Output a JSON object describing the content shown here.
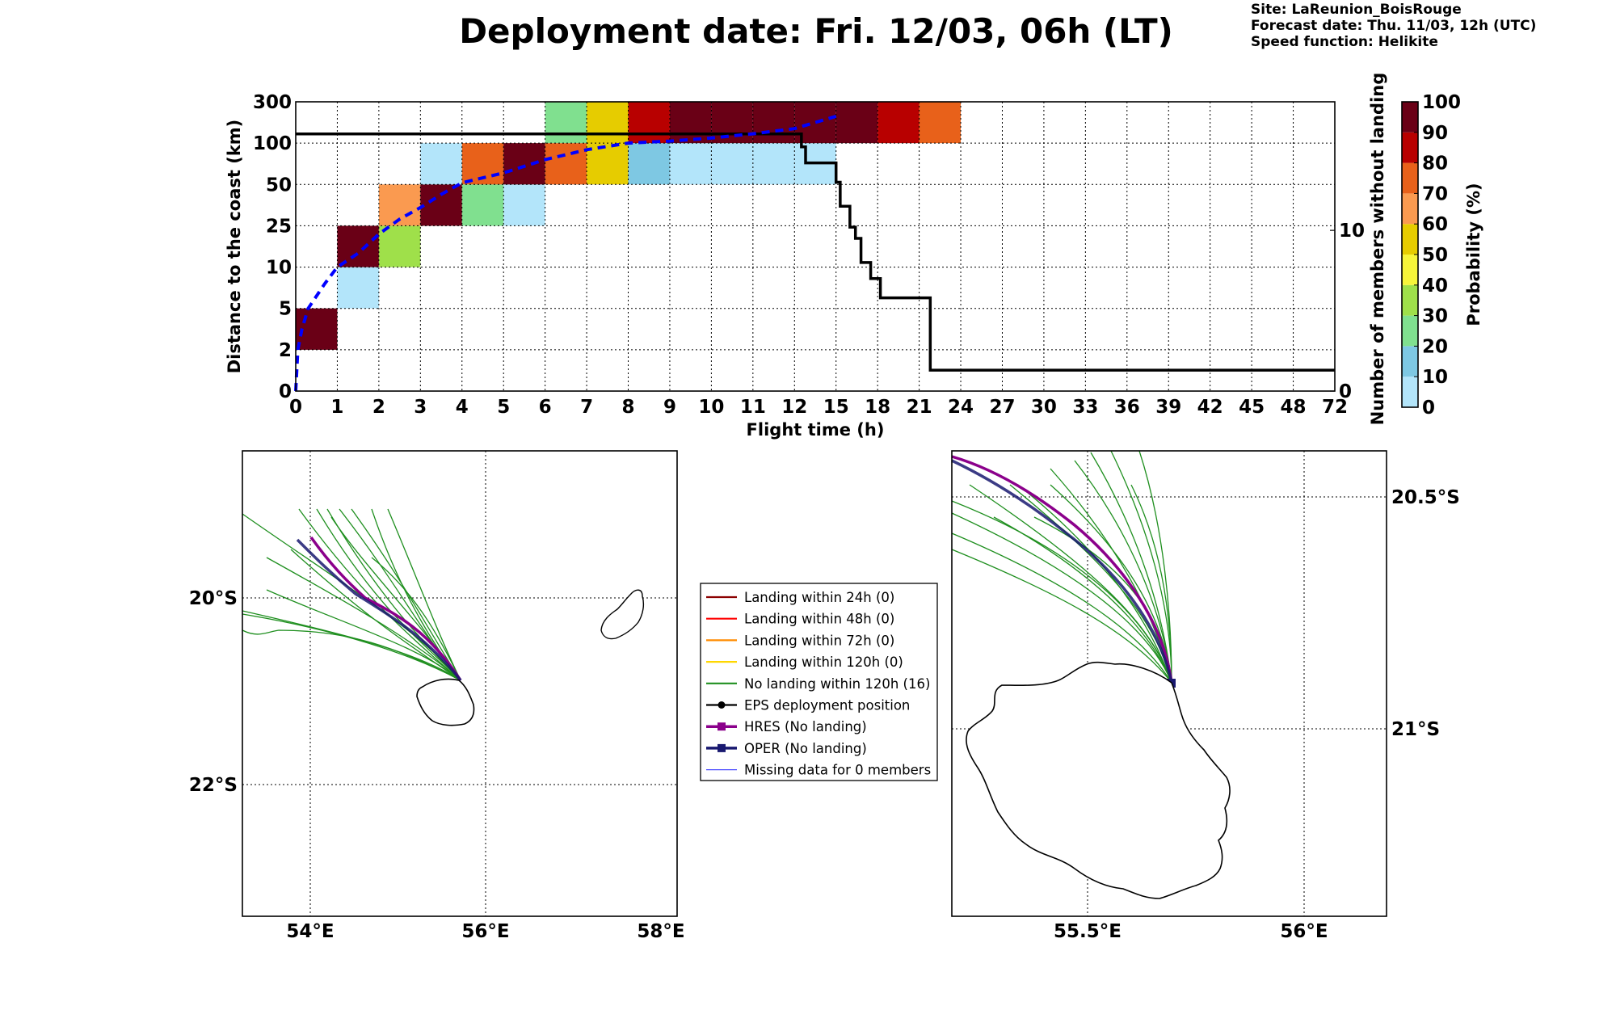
{
  "header": {
    "title": "Deployment date: Fri. 12/03, 06h (LT)",
    "site": "Site: LaReunion_BoisRouge",
    "forecast": "Forecast date: Thu. 11/03, 12h (UTC)",
    "speed": "Speed function: Helikite"
  },
  "colors": {
    "bins": [
      "#b3e5fa",
      "#7ec8e3",
      "#80e08f",
      "#9fe04a",
      "#f7f53a",
      "#e6cc00",
      "#fa9a50",
      "#e8611a",
      "#b80000",
      "#6a0016"
    ],
    "eps_median": "#0000ff",
    "members_line": "#000000",
    "hres": "#8b008b",
    "oper": "#191970",
    "ensemble": "#1f8f1f"
  },
  "chart_data": [
    {
      "type": "heatmap",
      "xlabel": "Flight time (h)",
      "ylabel": "Distance to the coast (km)",
      "y2label": "Number of members without landing",
      "x_ticks": [
        "0",
        "1",
        "2",
        "3",
        "4",
        "5",
        "6",
        "7",
        "8",
        "9",
        "10",
        "11",
        "12",
        "15",
        "18",
        "21",
        "24",
        "27",
        "30",
        "33",
        "36",
        "39",
        "42",
        "45",
        "48",
        "72"
      ],
      "y_ticks": [
        "0",
        "2",
        "5",
        "10",
        "25",
        "50",
        "100",
        "300"
      ],
      "y2_ticks": [
        "0",
        "10"
      ],
      "colorbar": {
        "label": "Probability (%)",
        "ticks": [
          "0",
          "10",
          "20",
          "30",
          "40",
          "50",
          "60",
          "70",
          "80",
          "90",
          "100"
        ]
      },
      "grid": true,
      "cells": [
        {
          "x": "0-1",
          "y": "2-5",
          "prob_bin": 9
        },
        {
          "x": "1-2",
          "y": "5-10",
          "prob_bin": 0
        },
        {
          "x": "1-2",
          "y": "10-25",
          "prob_bin": 9
        },
        {
          "x": "2-3",
          "y": "10-25",
          "prob_bin": 3
        },
        {
          "x": "2-3",
          "y": "25-50",
          "prob_bin": 6
        },
        {
          "x": "3-4",
          "y": "25-50",
          "prob_bin": 9
        },
        {
          "x": "3-4",
          "y": "50-100",
          "prob_bin": 0
        },
        {
          "x": "4-5",
          "y": "25-50",
          "prob_bin": 2
        },
        {
          "x": "4-5",
          "y": "50-100",
          "prob_bin": 7
        },
        {
          "x": "5-6",
          "y": "25-50",
          "prob_bin": 0
        },
        {
          "x": "5-6",
          "y": "50-100",
          "prob_bin": 9
        },
        {
          "x": "6-7",
          "y": "50-100",
          "prob_bin": 7
        },
        {
          "x": "6-7",
          "y": "100-300",
          "prob_bin": 2
        },
        {
          "x": "7-8",
          "y": "50-100",
          "prob_bin": 5
        },
        {
          "x": "7-8",
          "y": "100-300",
          "prob_bin": 5
        },
        {
          "x": "8-9",
          "y": "50-100",
          "prob_bin": 1
        },
        {
          "x": "8-9",
          "y": "100-300",
          "prob_bin": 8
        },
        {
          "x": "9-10",
          "y": "50-100",
          "prob_bin": 0
        },
        {
          "x": "9-10",
          "y": "100-300",
          "prob_bin": 9
        },
        {
          "x": "10-11",
          "y": "50-100",
          "prob_bin": 0
        },
        {
          "x": "10-11",
          "y": "100-300",
          "prob_bin": 9
        },
        {
          "x": "11-12",
          "y": "50-100",
          "prob_bin": 0
        },
        {
          "x": "11-12",
          "y": "100-300",
          "prob_bin": 9
        },
        {
          "x": "12-15",
          "y": "50-100",
          "prob_bin": 0
        },
        {
          "x": "12-15",
          "y": "100-300",
          "prob_bin": 9
        },
        {
          "x": "15-18",
          "y": "100-300",
          "prob_bin": 9
        },
        {
          "x": "18-21",
          "y": "100-300",
          "prob_bin": 8
        },
        {
          "x": "21-24",
          "y": "100-300",
          "prob_bin": 7
        }
      ],
      "median_distance": {
        "x_h": [
          0,
          0.05,
          0.15,
          0.3,
          0.5,
          0.7,
          1,
          1.5,
          2,
          2.5,
          3,
          3.5,
          4,
          5,
          6,
          7,
          8,
          9,
          10,
          11,
          12,
          13,
          14,
          15
        ],
        "y_km": [
          0,
          2,
          3.5,
          5,
          6.5,
          8,
          10,
          15,
          22,
          29,
          36,
          44,
          52,
          64,
          80,
          92,
          100,
          110,
          125,
          145,
          170,
          190,
          210,
          230
        ]
      },
      "members_without_landing": [
        {
          "x": 0,
          "y": 16
        },
        {
          "x": 12.2,
          "y": 16
        },
        {
          "x": 12.5,
          "y": 15.2
        },
        {
          "x": 12.8,
          "y": 14.2
        },
        {
          "x": 15,
          "y": 13
        },
        {
          "x": 15.3,
          "y": 11.5
        },
        {
          "x": 16,
          "y": 10.2
        },
        {
          "x": 16.4,
          "y": 9.5
        },
        {
          "x": 16.8,
          "y": 8
        },
        {
          "x": 17.5,
          "y": 7
        },
        {
          "x": 18.2,
          "y": 5.8
        },
        {
          "x": 21.8,
          "y": 1.3
        },
        {
          "x": 72,
          "y": 1.3
        }
      ]
    },
    {
      "type": "map",
      "x_ticks": [
        "54°E",
        "56°E",
        "58°E"
      ],
      "y_ticks": [
        "20°S",
        "22°S"
      ]
    },
    {
      "type": "map",
      "x_ticks": [
        "55.5°E",
        "56°E"
      ],
      "y_ticks": [
        "20.5°S",
        "21°S"
      ]
    }
  ],
  "legend": [
    {
      "label": "Landing within 24h (0)",
      "color": "#8b0000",
      "marker": "none"
    },
    {
      "label": "Landing within 48h (0)",
      "color": "#ff0000",
      "marker": "none"
    },
    {
      "label": "Landing within 72h (0)",
      "color": "#ff8c00",
      "marker": "none"
    },
    {
      "label": "Landing within 120h (0)",
      "color": "#ffd700",
      "marker": "none"
    },
    {
      "label": "No landing within 120h (16)",
      "color": "#1f8f1f",
      "marker": "none"
    },
    {
      "label": "EPS deployment position",
      "color": "#000000",
      "marker": "circle"
    },
    {
      "label": "HRES (No landing)",
      "color": "#8b008b",
      "marker": "square"
    },
    {
      "label": "OPER (No landing)",
      "color": "#191970",
      "marker": "square"
    },
    {
      "label": "Missing data for 0 members",
      "color": "#4d4dff",
      "marker": "none"
    }
  ]
}
